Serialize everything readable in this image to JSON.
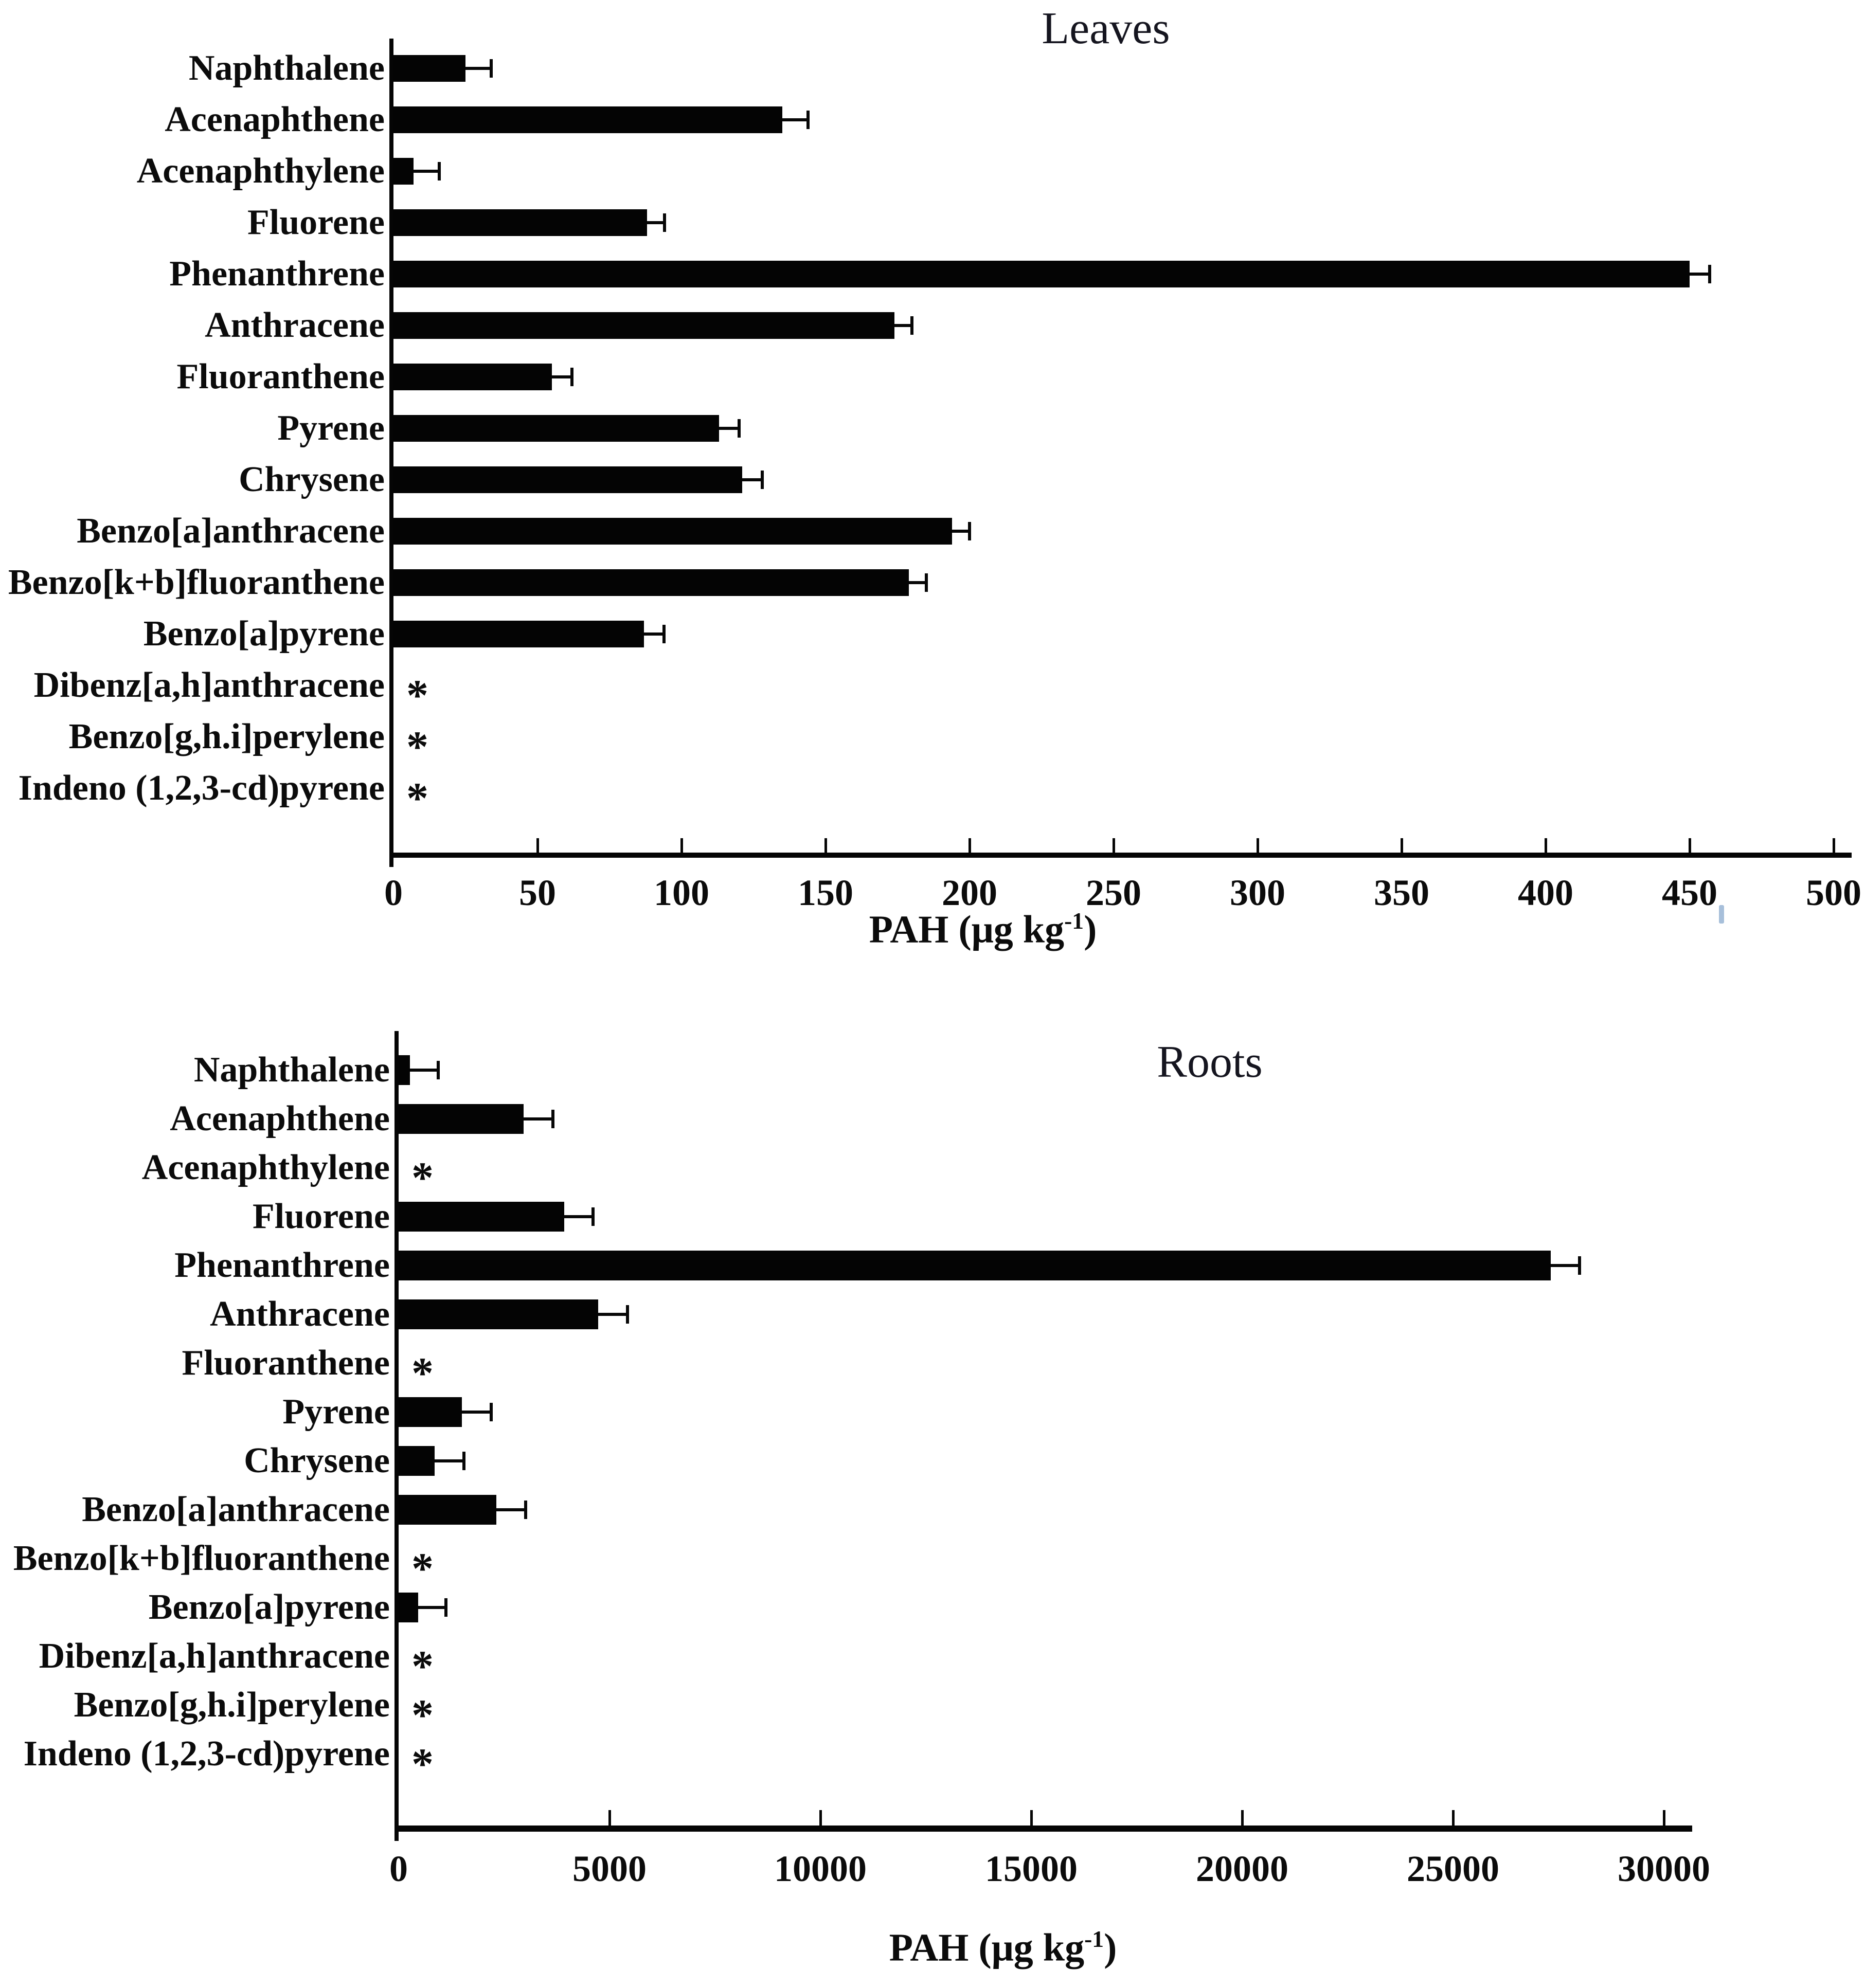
{
  "figure": {
    "background_color": "#ffffff",
    "bar_color": "#040404",
    "text_color": "#0b0b0b",
    "not_detected_marker": "*"
  },
  "chart_data": [
    {
      "type": "bar",
      "orientation": "horizontal",
      "title": "Leaves",
      "xlabel": "PAH (μg kg⁻¹)",
      "xlabel_parts": {
        "prefix": "PAH (μg kg",
        "sup": "-1",
        "suffix": ")"
      },
      "xlim": [
        0,
        500
      ],
      "xticks": [
        "0",
        "50",
        "100",
        "150",
        "200",
        "250",
        "300",
        "350",
        "400",
        "450",
        "500"
      ],
      "grid": false,
      "legend": null,
      "categories": [
        "Naphthalene",
        "Acenaphthene",
        "Acenaphthylene",
        "Fluorene",
        "Phenanthrene",
        "Anthracene",
        "Fluoranthene",
        "Pyrene",
        "Chrysene",
        "Benzo[a]anthracene",
        "Benzo[k+b]fluoranthene",
        "Benzo[a]pyrene",
        "Dibenz[a,h]anthracene",
        "Benzo[g,h.i]perylene",
        "Indeno (1,2,3-cd)pyrene"
      ],
      "values": [
        25,
        135,
        7,
        88,
        450,
        174,
        55,
        113,
        121,
        194,
        179,
        87,
        null,
        null,
        null
      ],
      "errors_plus": [
        9,
        9,
        9,
        6,
        7,
        6,
        7,
        7,
        7,
        6,
        6,
        7,
        null,
        null,
        null
      ],
      "not_detected": [
        false,
        false,
        false,
        false,
        false,
        false,
        false,
        false,
        false,
        false,
        false,
        false,
        true,
        true,
        true
      ]
    },
    {
      "type": "bar",
      "orientation": "horizontal",
      "title": "Roots",
      "xlabel": "PAH (μg kg⁻¹)",
      "xlabel_parts": {
        "prefix": "PAH (μg kg",
        "sup": "-1",
        "suffix": ")"
      },
      "xlim": [
        0,
        30000
      ],
      "xticks": [
        "0",
        "5000",
        "10000",
        "15000",
        "20000",
        "25000",
        "30000"
      ],
      "grid": false,
      "legend": null,
      "categories": [
        "Naphthalene",
        "Acenaphthene",
        "Acenaphthylene",
        "Fluorene",
        "Phenanthrene",
        "Anthracene",
        "Fluoranthene",
        "Pyrene",
        "Chrysene",
        "Benzo[a]anthracene",
        "Benzo[k+b]fluoranthene",
        "Benzo[a]pyrene",
        "Dibenz[a,h]anthracene",
        "Benzo[g,h.i]perylene",
        "Indeno (1,2,3-cd)pyrene"
      ],
      "values": [
        270,
        2960,
        null,
        3930,
        27320,
        4730,
        null,
        1500,
        855,
        2320,
        null,
        460,
        null,
        null,
        null
      ],
      "errors_plus": [
        670,
        700,
        null,
        680,
        680,
        700,
        null,
        700,
        695,
        690,
        null,
        660,
        null,
        null,
        null
      ],
      "not_detected": [
        false,
        false,
        true,
        false,
        false,
        false,
        true,
        false,
        false,
        false,
        true,
        false,
        true,
        true,
        true
      ]
    }
  ]
}
